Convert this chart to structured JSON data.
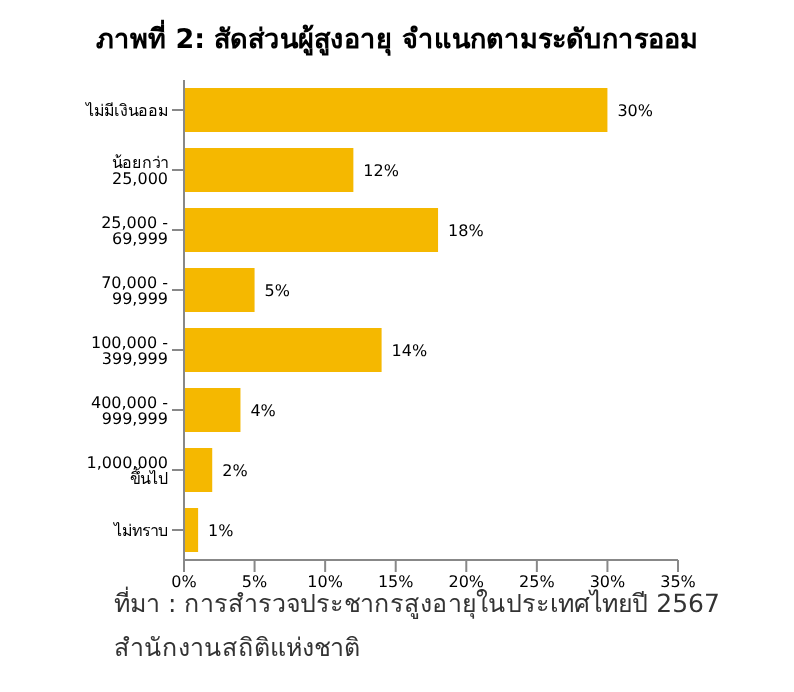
{
  "chart_data": {
    "type": "bar",
    "orientation": "horizontal",
    "title": "ภาพที่ 2: สัดส่วนผู้สูงอายุ จำแนกตามระดับการออม",
    "categories": [
      "ไม่มีเงินออม",
      "น้อยกว่า 25,000",
      "25,000 - 69,999",
      "70,000 - 99,999",
      "100,000 - 399,999",
      "400,000 - 999,999",
      "1,000,000 ขึ้นไป",
      "ไม่ทราบ"
    ],
    "values": [
      30,
      12,
      18,
      5,
      14,
      4,
      2,
      1
    ],
    "value_labels": [
      "30%",
      "12%",
      "18%",
      "5%",
      "14%",
      "4%",
      "2%",
      "1%"
    ],
    "color": "#f5b800",
    "xlim": [
      0,
      35
    ],
    "xticks": [
      {
        "value": 0,
        "label": "0%"
      },
      {
        "value": 5,
        "label": "5%"
      },
      {
        "value": 10,
        "label": "10%"
      },
      {
        "value": 15,
        "label": "15%"
      },
      {
        "value": 20,
        "label": "20%"
      },
      {
        "value": 25,
        "label": "25%"
      },
      {
        "value": 30,
        "label": "30%"
      },
      {
        "value": 35,
        "label": "35%"
      }
    ],
    "grid": false,
    "legend": false,
    "annotations": [
      "ที่มา : การสำรวจประชากรสูงอายุในประเทศไทยปี 2567",
      "สำนักงานสถิติแห่งชาติ"
    ]
  }
}
